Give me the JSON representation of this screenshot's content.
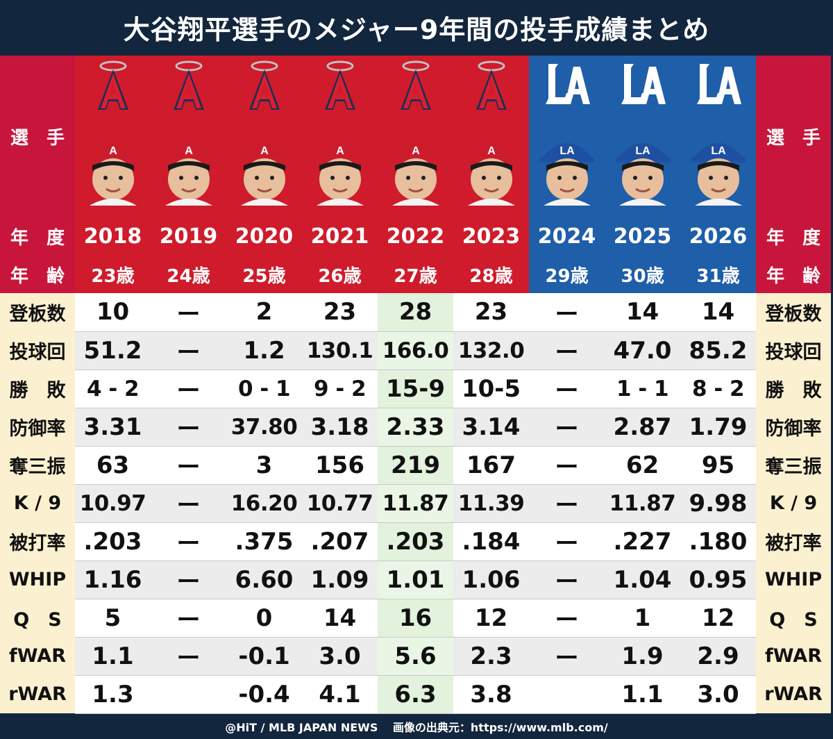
{
  "title": "大谷翔平選手のメジャー9年間の投手成績まとめ",
  "labels": {
    "player": "選　手",
    "year": "年　度",
    "age": "年　齢"
  },
  "seasons": [
    {
      "year": "2018",
      "age": "23歳",
      "team": "angels"
    },
    {
      "year": "2019",
      "age": "24歳",
      "team": "angels"
    },
    {
      "year": "2020",
      "age": "25歳",
      "team": "angels"
    },
    {
      "year": "2021",
      "age": "26歳",
      "team": "angels"
    },
    {
      "year": "2022",
      "age": "27歳",
      "team": "angels"
    },
    {
      "year": "2023",
      "age": "28歳",
      "team": "angels"
    },
    {
      "year": "2024",
      "age": "29歳",
      "team": "dodgers"
    },
    {
      "year": "2025",
      "age": "30歳",
      "team": "dodgers"
    },
    {
      "year": "2026",
      "age": "31歳",
      "team": "dodgers"
    }
  ],
  "colors": {
    "angels_red": "#cf1b2b",
    "dodgers_blue": "#1f5ea8",
    "label_red": "#c8153c",
    "label_cream": "#fbf1d0",
    "highlight_green": "#e2f2dc"
  },
  "logos": {
    "angels": "A",
    "dodgers": "LA"
  },
  "stats": [
    {
      "label": "登板数",
      "values": [
        "10",
        "ー",
        "2",
        "23",
        "28",
        "23",
        "ー",
        "14",
        "14"
      ]
    },
    {
      "label": "投球回",
      "values": [
        "51.2",
        "ー",
        "1.2",
        "130.1",
        "166.0",
        "132.0",
        "ー",
        "47.0",
        "85.2"
      ]
    },
    {
      "label": "勝　敗",
      "values": [
        "4 - 2",
        "ー",
        "0 - 1",
        "9 - 2",
        "15-9",
        "10-5",
        "ー",
        "1 - 1",
        "8 - 2"
      ]
    },
    {
      "label": "防御率",
      "values": [
        "3.31",
        "ー",
        "37.80",
        "3.18",
        "2.33",
        "3.14",
        "ー",
        "2.87",
        "1.79"
      ]
    },
    {
      "label": "奪三振",
      "values": [
        "63",
        "ー",
        "3",
        "156",
        "219",
        "167",
        "ー",
        "62",
        "95"
      ]
    },
    {
      "label": "K / 9",
      "values": [
        "10.97",
        "ー",
        "16.20",
        "10.77",
        "11.87",
        "11.39",
        "ー",
        "11.87",
        "9.98"
      ]
    },
    {
      "label": "被打率",
      "values": [
        ".203",
        "ー",
        ".375",
        ".207",
        ".203",
        ".184",
        "ー",
        ".227",
        ".180"
      ]
    },
    {
      "label": "WHIP",
      "values": [
        "1.16",
        "ー",
        "6.60",
        "1.09",
        "1.01",
        "1.06",
        "ー",
        "1.04",
        "0.95"
      ]
    },
    {
      "label": "Q　S",
      "values": [
        "5",
        "ー",
        "0",
        "14",
        "16",
        "12",
        "ー",
        "1",
        "12"
      ]
    },
    {
      "label": "fWAR",
      "values": [
        "1.1",
        "ー",
        "-0.1",
        "3.0",
        "5.6",
        "2.3",
        "ー",
        "1.9",
        "2.9"
      ]
    },
    {
      "label": "rWAR",
      "values": [
        "1.3",
        "",
        "-0.4",
        "4.1",
        "6.3",
        "3.8",
        "",
        "1.1",
        "3.0"
      ]
    }
  ],
  "footer": "@HiT / MLB JAPAN NEWS　 画像の出典元：https://www.mlb.com/"
}
